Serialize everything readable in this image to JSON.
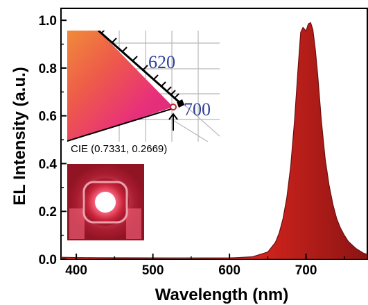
{
  "chart_data": {
    "type": "area",
    "xlabel": "Wavelength (nm)",
    "ylabel": "EL Intensity (a.u.)",
    "xlim": [
      380,
      780
    ],
    "ylim": [
      0,
      1.05
    ],
    "x_ticks": [
      400,
      500,
      600,
      700
    ],
    "y_ticks": [
      "0.0",
      "0.2",
      "0.4",
      "0.6",
      "0.8",
      "1.0"
    ],
    "grid": false,
    "legend": "none",
    "series": [
      {
        "fill": "#ee2f24",
        "x": [
          380,
          450,
          550,
          600,
          630,
          650,
          660,
          665,
          670,
          675,
          680,
          685,
          690,
          693,
          696,
          700,
          703,
          706,
          709,
          712,
          715,
          720,
          725,
          730,
          735,
          740,
          745,
          750,
          755,
          760,
          765,
          770,
          775,
          780
        ],
        "y": [
          0.008,
          0.004,
          0.003,
          0.005,
          0.01,
          0.03,
          0.07,
          0.11,
          0.17,
          0.26,
          0.39,
          0.58,
          0.82,
          0.95,
          0.97,
          0.955,
          0.985,
          0.99,
          0.96,
          0.88,
          0.78,
          0.58,
          0.42,
          0.31,
          0.23,
          0.17,
          0.13,
          0.1,
          0.075,
          0.06,
          0.045,
          0.035,
          0.025,
          0.02
        ]
      }
    ],
    "insets": {
      "cie": {
        "wavelength_labels": [
          "620",
          "700"
        ],
        "coordinate_label": "CIE (0.7331, 0.2669)"
      },
      "device_photo": {}
    }
  },
  "colors": {
    "spectrum_fill": "#ee2f24",
    "spectrum_edge": "#6b1010",
    "cie_label": "#2f3f9a"
  }
}
